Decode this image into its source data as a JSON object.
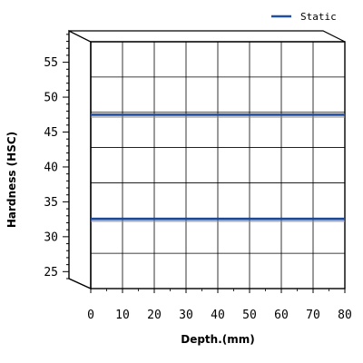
{
  "chart_data": {
    "type": "line",
    "xlabel": "Depth.(mm)",
    "ylabel": "Hardness (HSC)",
    "xlim": [
      0,
      80
    ],
    "ylim": [
      24,
      59.5
    ],
    "x_ticks": [
      "0",
      "10",
      "20",
      "30",
      "40",
      "50",
      "60",
      "70",
      "80"
    ],
    "y_ticks": [
      "25",
      "30",
      "35",
      "40",
      "45",
      "50",
      "55"
    ],
    "grid": true,
    "legend_position": "top-right",
    "style": "3d-box",
    "series": [
      {
        "name": "Static",
        "color": "#1f4ea3",
        "segments": [
          {
            "x": [
              0,
              80
            ],
            "y": [
              49,
              49
            ]
          },
          {
            "x": [
              0,
              80
            ],
            "y": [
              34,
              34
            ]
          }
        ]
      }
    ]
  }
}
